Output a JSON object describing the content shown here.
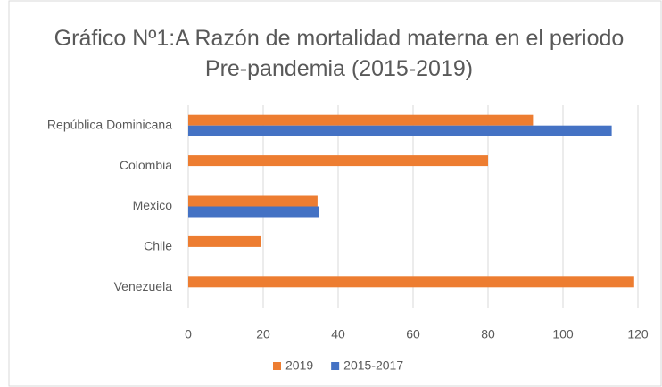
{
  "chart_data": {
    "type": "bar",
    "orientation": "horizontal",
    "title": "Gráfico Nº1:A Razón de mortalidad materna en el periodo Pre-pandemia (2015-2019)",
    "categories": [
      "República Dominicana",
      "Colombia",
      "Mexico",
      "Chile",
      "Venezuela"
    ],
    "series": [
      {
        "name": "2019",
        "color": "#ed7d31",
        "values": [
          92,
          80,
          34.5,
          19.5,
          119
        ]
      },
      {
        "name": "2015-2017",
        "color": "#4472c4",
        "values": [
          113,
          null,
          35,
          null,
          null
        ]
      }
    ],
    "xlim": [
      0,
      120
    ],
    "xticks": [
      0,
      20,
      40,
      60,
      80,
      100,
      120
    ],
    "grid": true,
    "legend": "bottom"
  }
}
